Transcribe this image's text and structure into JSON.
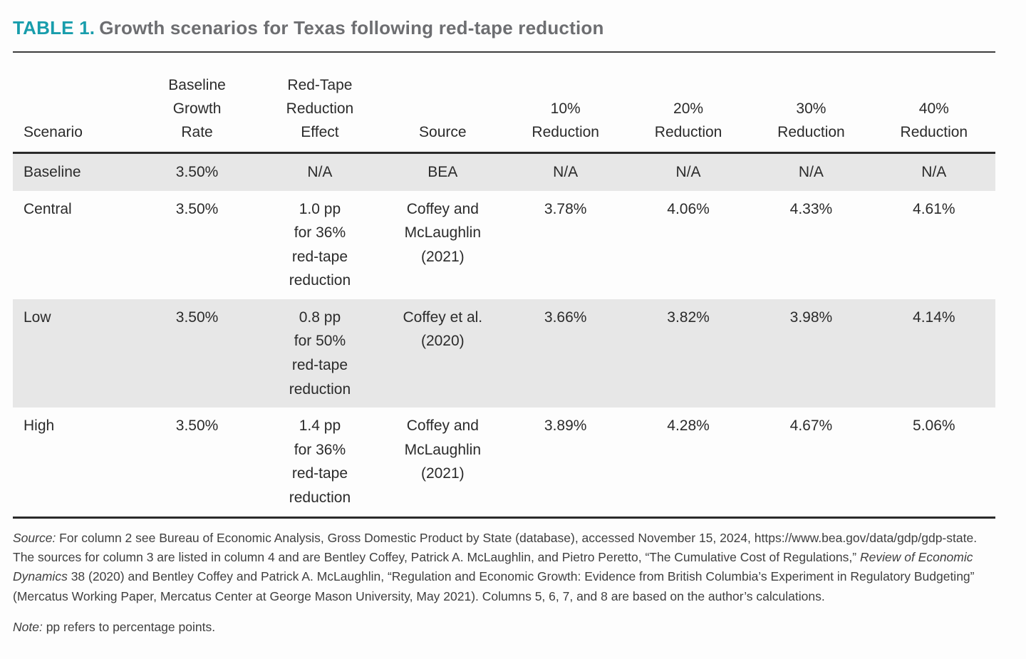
{
  "page": {
    "title": {
      "label": "TABLE 1.",
      "text": "Growth scenarios for Texas following red-tape reduction"
    }
  },
  "table": {
    "columns": [
      "Scenario",
      "Baseline\nGrowth\nRate",
      "Red-Tape\nReduction\nEffect",
      "Source",
      "10%\nReduction",
      "20%\nReduction",
      "30%\nReduction",
      "40%\nReduction"
    ],
    "rows": [
      {
        "cells": [
          "Baseline",
          "3.50%",
          "N/A",
          "BEA",
          "N/A",
          "N/A",
          "N/A",
          "N/A"
        ]
      },
      {
        "cells": [
          "Central",
          "3.50%",
          "1.0 pp\nfor 36%\nred-tape\nreduction",
          "Coffey and\nMcLaughlin\n(2021)",
          "3.78%",
          "4.06%",
          "4.33%",
          "4.61%"
        ]
      },
      {
        "cells": [
          "Low",
          "3.50%",
          "0.8 pp\nfor 50%\nred-tape\nreduction",
          "Coffey et al.\n(2020)",
          "3.66%",
          "3.82%",
          "3.98%",
          "4.14%"
        ]
      },
      {
        "cells": [
          "High",
          "3.50%",
          "1.4 pp\nfor 36%\nred-tape\nreduction",
          "Coffey and\nMcLaughlin\n(2021)",
          "3.89%",
          "4.28%",
          "4.67%",
          "5.06%"
        ]
      }
    ]
  },
  "footnotes": {
    "source_segments": [
      {
        "text": "Source:",
        "italic": true
      },
      {
        "text": " For column 2 see Bureau of Economic Analysis, Gross Domestic Product by State (database), accessed November 15, 2024, https://www.bea.gov/data/gdp/gdp-state. The sources for column 3 are listed in column 4 and are Bentley Coffey, Patrick A. McLaughlin, and Pietro Peretto, “The Cumulative Cost of Regulations,” ",
        "italic": false
      },
      {
        "text": "Review of Economic Dynamics",
        "italic": true
      },
      {
        "text": " 38 (2020) and Bentley Coffey and Patrick A. McLaughlin, “Regulation and Economic Growth: Evidence from British Columbia’s Experiment in Regulatory Budgeting” (Mercatus Working Paper, Mercatus Center at George Mason University, May 2021). Columns 5, 6, 7, and 8 are based on the author’s calculations.",
        "italic": false
      }
    ],
    "note_segments": [
      {
        "text": "Note:",
        "italic": true
      },
      {
        "text": " pp refers to percentage points.",
        "italic": false
      }
    ]
  },
  "colors": {
    "accent_teal": "#189dac",
    "title_gray": "#6d6e71",
    "row_shade": "#e7e7e7",
    "body_text": "#2b2b2b",
    "rule": "#2a2a2a"
  }
}
